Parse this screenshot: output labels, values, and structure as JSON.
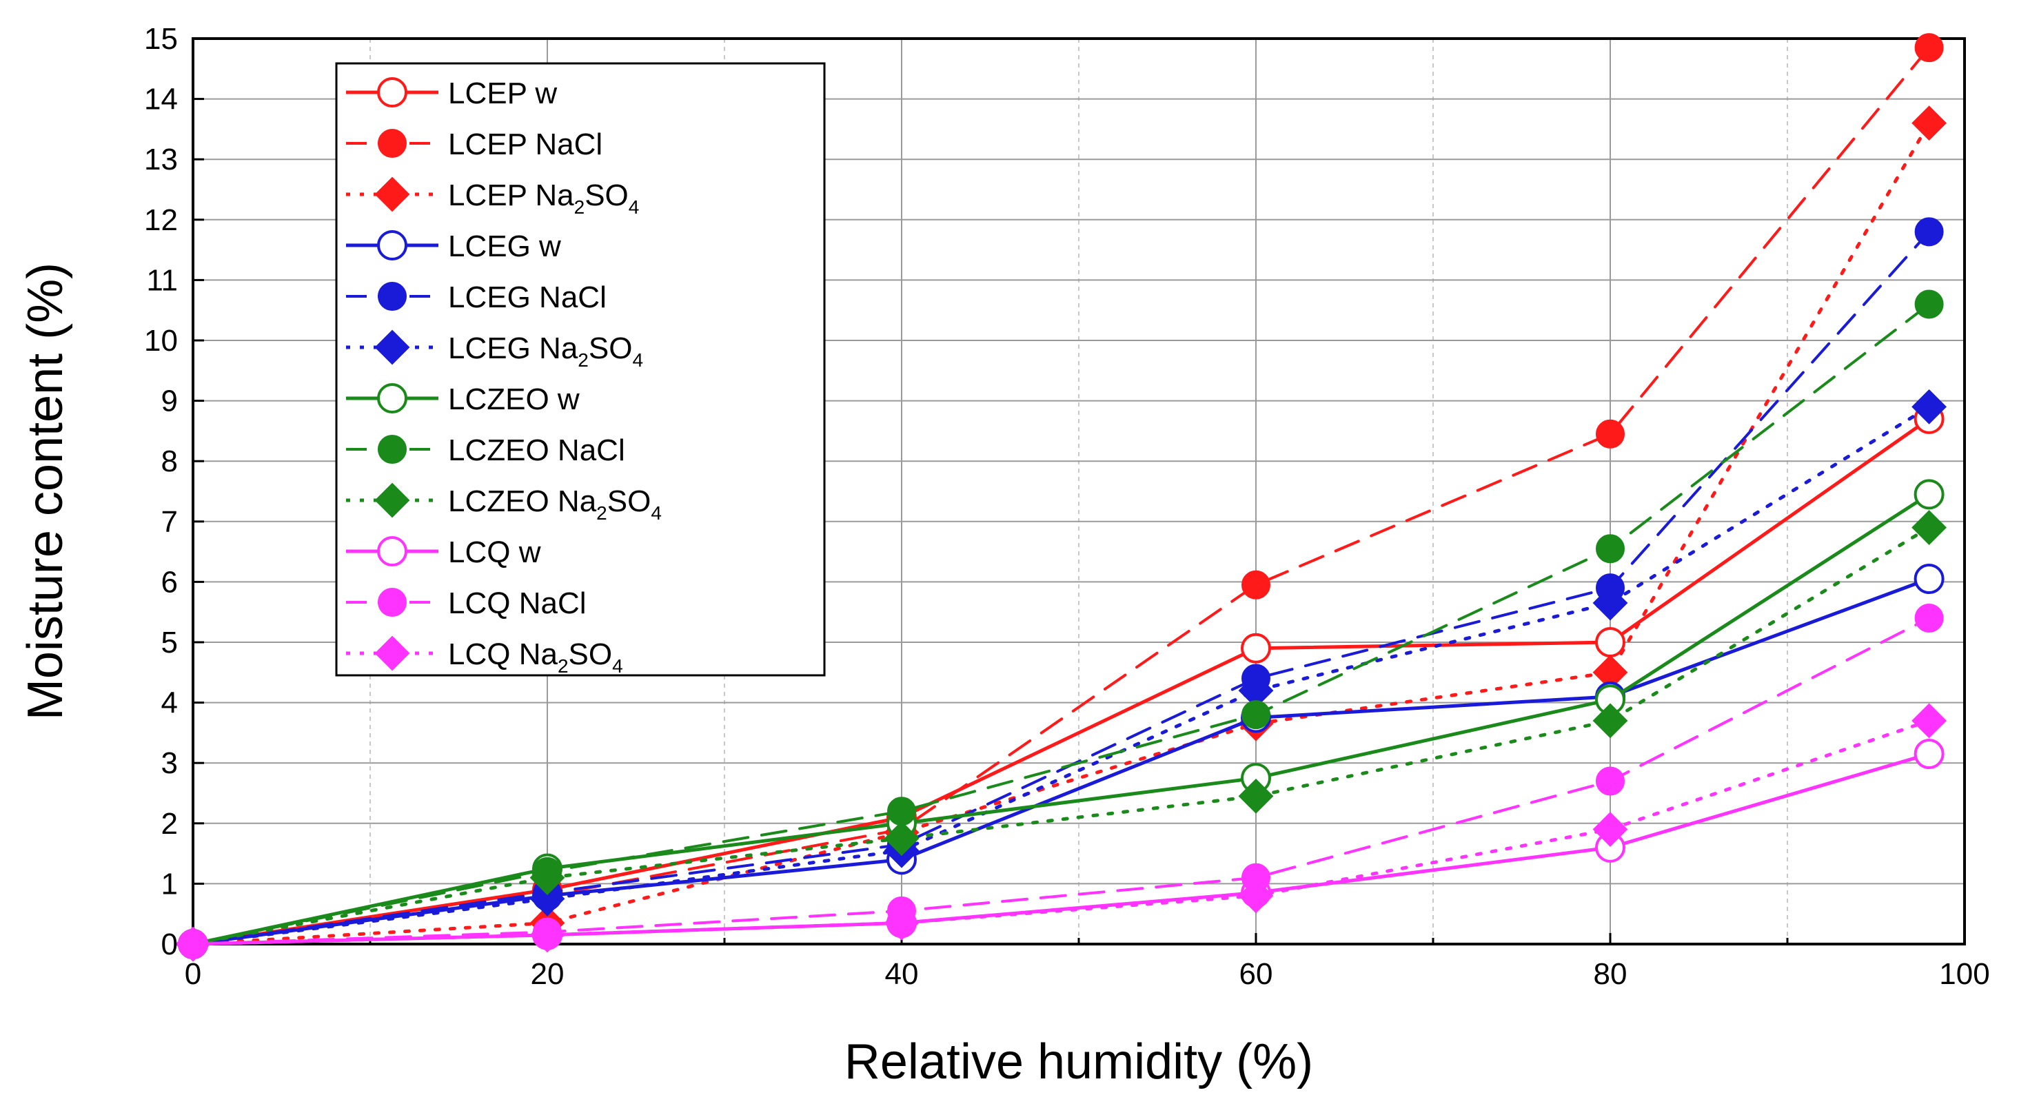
{
  "chart_data": {
    "type": "line",
    "title": "",
    "xlabel": "Relative humidity (%)",
    "ylabel": "Moisture content (%)",
    "xlim": [
      0,
      100
    ],
    "ylim": [
      0,
      15
    ],
    "x_ticks": [
      0,
      20,
      40,
      60,
      80,
      100
    ],
    "y_ticks": [
      0,
      1,
      2,
      3,
      4,
      5,
      6,
      7,
      8,
      9,
      10,
      11,
      12,
      13,
      14,
      15
    ],
    "grid": true,
    "legend_position": "top-left",
    "colors": {
      "red": "#ff1a1a",
      "blue": "#1a1ad9",
      "green": "#1a8a1a",
      "magenta": "#ff33ff"
    },
    "x": [
      0,
      20,
      40,
      60,
      80,
      98
    ],
    "series": [
      {
        "name": "LCEP w",
        "label_main": "LCEP w",
        "label_sub": "",
        "label_tail": "",
        "color": "#ff1a1a",
        "dash": "solid",
        "marker": "circle-open",
        "values": [
          0,
          0.9,
          2.1,
          4.9,
          5.0,
          8.7
        ]
      },
      {
        "name": "LCEP NaCl",
        "label_main": "LCEP NaCl",
        "label_sub": "",
        "label_tail": "",
        "color": "#ff1a1a",
        "dash": "dash",
        "marker": "circle-filled",
        "values": [
          0,
          0.8,
          1.9,
          5.95,
          8.45,
          14.85
        ]
      },
      {
        "name": "LCEP Na2SO4",
        "label_main": "LCEP Na",
        "label_sub": "2",
        "label_tail": "SO",
        "label_sub2": "4",
        "color": "#ff1a1a",
        "dash": "dot",
        "marker": "diamond-filled",
        "values": [
          0,
          0.35,
          1.85,
          3.65,
          4.5,
          13.6
        ]
      },
      {
        "name": "LCEG w",
        "label_main": "LCEG w",
        "label_sub": "",
        "label_tail": "",
        "color": "#1a1ad9",
        "dash": "solid",
        "marker": "circle-open",
        "values": [
          0,
          0.8,
          1.4,
          3.75,
          4.1,
          6.05
        ]
      },
      {
        "name": "LCEG NaCl",
        "label_main": "LCEG NaCl",
        "label_sub": "",
        "label_tail": "",
        "color": "#1a1ad9",
        "dash": "dash",
        "marker": "circle-filled",
        "values": [
          0,
          0.85,
          1.65,
          4.4,
          5.9,
          11.8
        ]
      },
      {
        "name": "LCEG Na2SO4",
        "label_main": "LCEG Na",
        "label_sub": "2",
        "label_tail": "SO",
        "label_sub2": "4",
        "color": "#1a1ad9",
        "dash": "dot",
        "marker": "diamond-filled",
        "values": [
          0,
          0.75,
          1.55,
          4.2,
          5.65,
          8.9
        ]
      },
      {
        "name": "LCZEO w",
        "label_main": "LCZEO w",
        "label_sub": "",
        "label_tail": "",
        "color": "#1a8a1a",
        "dash": "solid",
        "marker": "circle-open",
        "values": [
          0,
          1.25,
          2.0,
          2.75,
          4.05,
          7.45
        ]
      },
      {
        "name": "LCZEO NaCl",
        "label_main": "LCZEO NaCl",
        "label_sub": "",
        "label_tail": "",
        "color": "#1a8a1a",
        "dash": "dash",
        "marker": "circle-filled",
        "values": [
          0,
          1.2,
          2.2,
          3.8,
          6.55,
          10.6
        ]
      },
      {
        "name": "LCZEO Na2SO4",
        "label_main": "LCZEO Na",
        "label_sub": "2",
        "label_tail": "SO",
        "label_sub2": "4",
        "color": "#1a8a1a",
        "dash": "dot",
        "marker": "diamond-filled",
        "values": [
          0,
          1.1,
          1.75,
          2.45,
          3.7,
          6.9
        ]
      },
      {
        "name": "LCQ w",
        "label_main": "LCQ w",
        "label_sub": "",
        "label_tail": "",
        "color": "#ff33ff",
        "dash": "solid",
        "marker": "circle-open",
        "values": [
          0,
          0.15,
          0.35,
          0.85,
          1.6,
          3.15
        ]
      },
      {
        "name": "LCQ NaCl",
        "label_main": "LCQ NaCl",
        "label_sub": "",
        "label_tail": "",
        "color": "#ff33ff",
        "dash": "dash",
        "marker": "circle-filled",
        "values": [
          0,
          0.2,
          0.55,
          1.1,
          2.7,
          5.4
        ]
      },
      {
        "name": "LCQ Na2SO4",
        "label_main": "LCQ Na",
        "label_sub": "2",
        "label_tail": "SO",
        "label_sub2": "4",
        "color": "#ff33ff",
        "dash": "dot",
        "marker": "diamond-filled",
        "values": [
          0,
          0.15,
          0.35,
          0.8,
          1.9,
          3.7
        ]
      }
    ]
  }
}
